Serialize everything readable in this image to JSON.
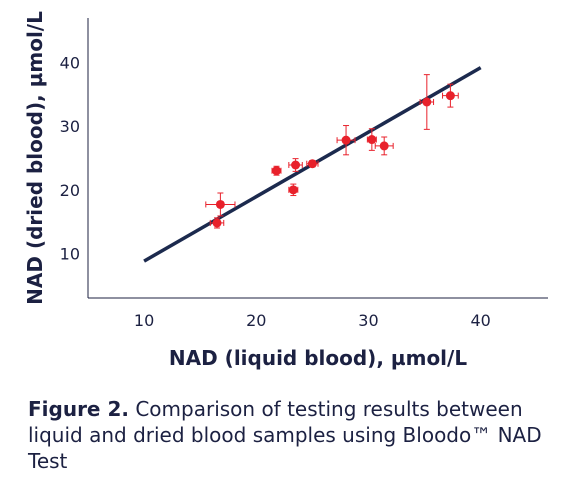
{
  "chart_data": {
    "type": "scatter",
    "title": "",
    "xlabel": "NAD (liquid blood), µmol/L",
    "ylabel": "NAD (dried blood), µmol/L",
    "xlim": [
      5,
      46
    ],
    "ylim": [
      3,
      47
    ],
    "x_ticks": [
      10,
      20,
      30,
      40
    ],
    "y_ticks": [
      10,
      20,
      30,
      40
    ],
    "grid": false,
    "legend": "none",
    "point_color": "#e8212b",
    "line_color": "#1c2a4e",
    "regression_line": {
      "x": [
        10,
        40
      ],
      "y": [
        8.8,
        39.2
      ]
    },
    "points": [
      {
        "x": 16.5,
        "y": 14.8,
        "xerr": 0.6,
        "yerr": 0.8
      },
      {
        "x": 16.8,
        "y": 17.7,
        "xerr": 1.3,
        "yerr": 1.8
      },
      {
        "x": 21.8,
        "y": 23.0,
        "xerr": 0.4,
        "yerr": 0.7
      },
      {
        "x": 23.3,
        "y": 20.0,
        "xerr": 0.4,
        "yerr": 0.9
      },
      {
        "x": 23.5,
        "y": 23.9,
        "xerr": 0.6,
        "yerr": 1.0
      },
      {
        "x": 25.0,
        "y": 24.1,
        "xerr": 0.5,
        "yerr": 0.5
      },
      {
        "x": 28.0,
        "y": 27.8,
        "xerr": 0.8,
        "yerr": 2.3
      },
      {
        "x": 30.3,
        "y": 27.9,
        "xerr": 0.4,
        "yerr": 1.7
      },
      {
        "x": 31.4,
        "y": 26.9,
        "xerr": 0.8,
        "yerr": 1.4
      },
      {
        "x": 35.2,
        "y": 33.8,
        "xerr": 0.6,
        "yerr": 4.3
      },
      {
        "x": 37.3,
        "y": 34.8,
        "xerr": 0.7,
        "yerr": 1.8
      }
    ]
  },
  "caption": {
    "label": "Figure 2.",
    "text": " Comparison of testing results between liquid and dried blood samples using Bloodo™ NAD Test"
  }
}
